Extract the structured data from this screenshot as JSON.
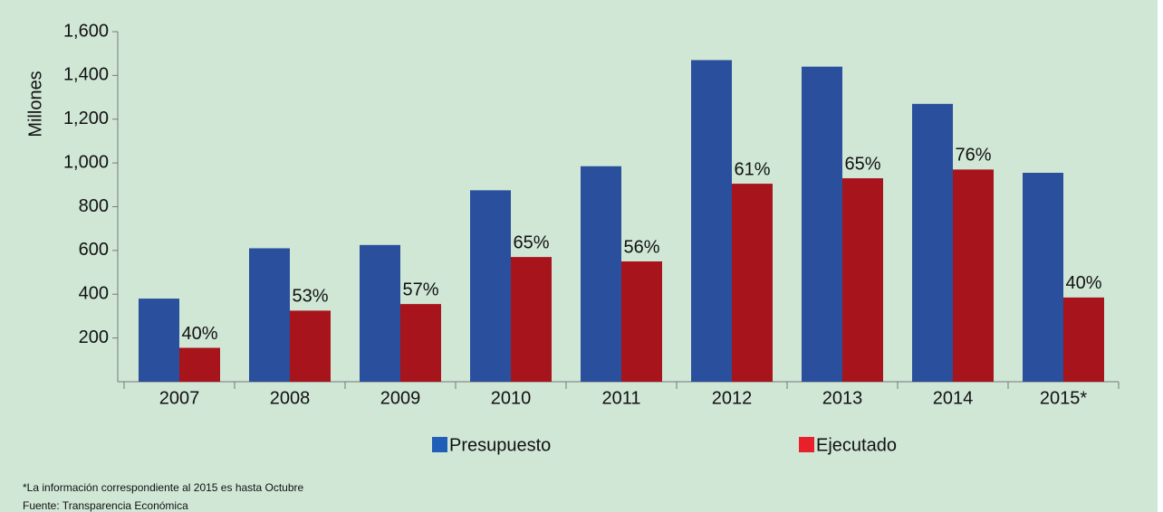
{
  "chart_data": {
    "type": "bar",
    "y_label": "Millones",
    "categories": [
      "2007",
      "2008",
      "2009",
      "2010",
      "2011",
      "2012",
      "2013",
      "2014",
      "2015*"
    ],
    "series": [
      {
        "name": "Presupuesto",
        "color": "#2a4f9c",
        "values": [
          380,
          610,
          625,
          875,
          985,
          1470,
          1440,
          1270,
          955
        ]
      },
      {
        "name": "Ejecutado",
        "color": "#a8141b",
        "values": [
          155,
          325,
          355,
          570,
          550,
          905,
          930,
          970,
          385
        ],
        "labels": [
          "40%",
          "53%",
          "57%",
          "65%",
          "56%",
          "61%",
          "65%",
          "76%",
          "40%"
        ]
      }
    ],
    "legend_colors": [
      "#1f5fb8",
      "#e8202a"
    ],
    "ylim": [
      0,
      1600
    ],
    "yticks": [
      {
        "value": 200,
        "label": "200"
      },
      {
        "value": 400,
        "label": "400"
      },
      {
        "value": 600,
        "label": "600"
      },
      {
        "value": 800,
        "label": "800"
      },
      {
        "value": 1000,
        "label": "1,000"
      },
      {
        "value": 1200,
        "label": "1,200"
      },
      {
        "value": 1400,
        "label": "1,400"
      },
      {
        "value": 1600,
        "label": "1,600"
      }
    ],
    "notes": [
      "*La información correspondiente al 2015 es hasta Octubre",
      "Fuente: Transparencia Económica"
    ]
  }
}
